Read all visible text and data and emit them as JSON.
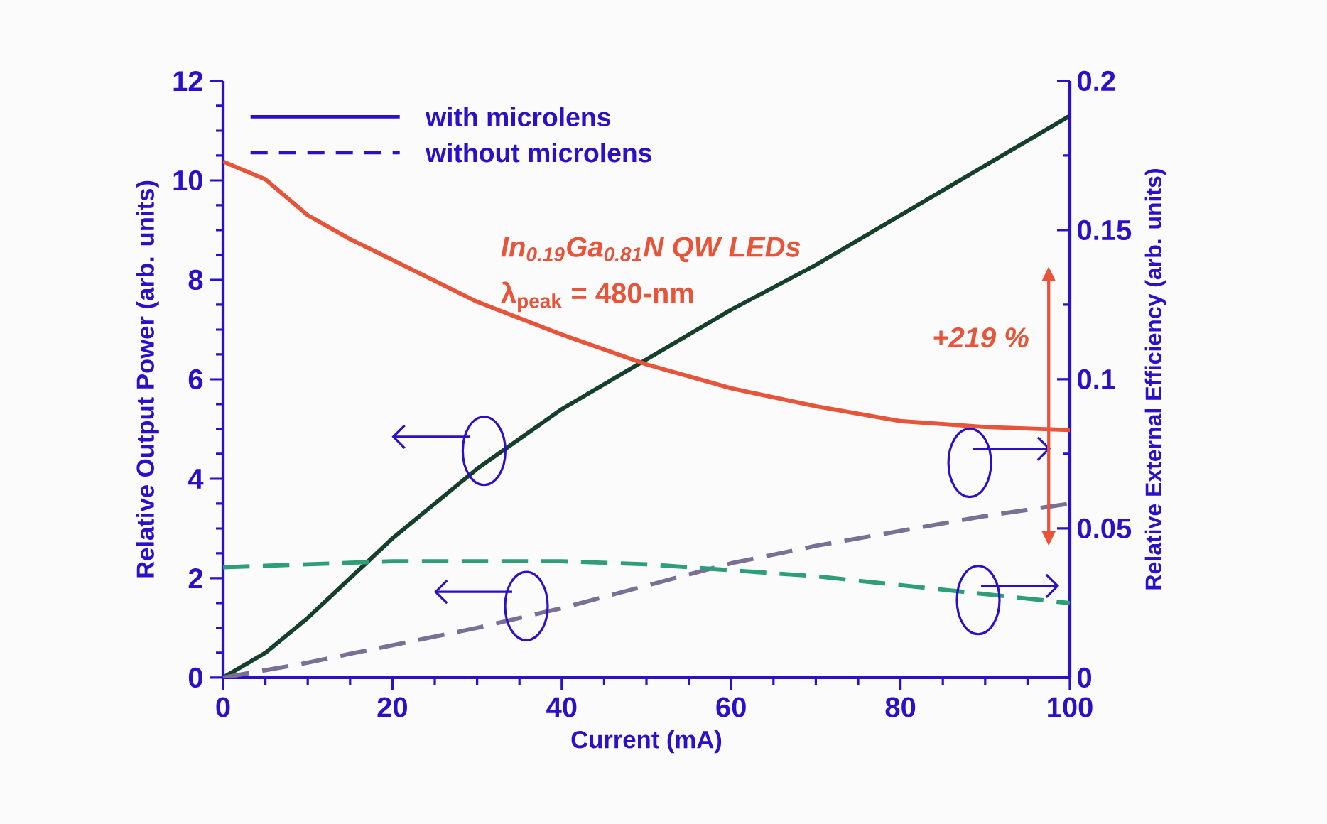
{
  "chart_data": {
    "type": "line",
    "xlabel": "Current (mA)",
    "ylabel": "Relative Output Power (arb. units)",
    "y2label": "Relative External Efficiency (arb. units)",
    "x": [
      0,
      5,
      10,
      15,
      20,
      30,
      40,
      50,
      60,
      70,
      80,
      90,
      100
    ],
    "series": [
      {
        "color": "#17402c",
        "line_style": "solid",
        "values": [
          0,
          0.5,
          1.2,
          2.0,
          2.8,
          4.2,
          5.4,
          6.4,
          7.4,
          8.3,
          9.3,
          10.3,
          11.3
        ]
      },
      {
        "color": "#e8543a",
        "line_style": "solid",
        "axis": "y2",
        "values": [
          0.173,
          0.167,
          0.155,
          0.147,
          0.14,
          0.126,
          0.115,
          0.105,
          0.097,
          0.091,
          0.086,
          0.084,
          0.083
        ]
      },
      {
        "color": "#7a7095",
        "line_style": "dashed",
        "values": [
          0,
          0.15,
          0.3,
          0.48,
          0.65,
          1.0,
          1.4,
          1.85,
          2.3,
          2.65,
          2.95,
          3.25,
          3.5
        ]
      },
      {
        "color": "#2e9e78",
        "line_style": "dashed",
        "axis": "y2",
        "values": [
          0.037,
          0.0375,
          0.038,
          0.0385,
          0.039,
          0.039,
          0.039,
          0.038,
          0.036,
          0.034,
          0.031,
          0.028,
          0.025
        ]
      }
    ],
    "xlim": [
      0,
      100
    ],
    "ylim": [
      0,
      12
    ],
    "y2lim": [
      0,
      0.2
    ],
    "xticks": [
      0,
      20,
      40,
      60,
      80,
      100
    ],
    "yticks": [
      0,
      2,
      4,
      6,
      8,
      10,
      12
    ],
    "y2ticks": [
      0,
      0.05,
      0.1,
      0.15,
      0.2
    ],
    "annotations": [
      "with microlens",
      "without microlens",
      "*In$_{0.19}$Ga$_{0.81}$N QW LEDs*",
      "λ$_{peak}$ = 480-nm",
      "*+219 %*"
    ]
  }
}
